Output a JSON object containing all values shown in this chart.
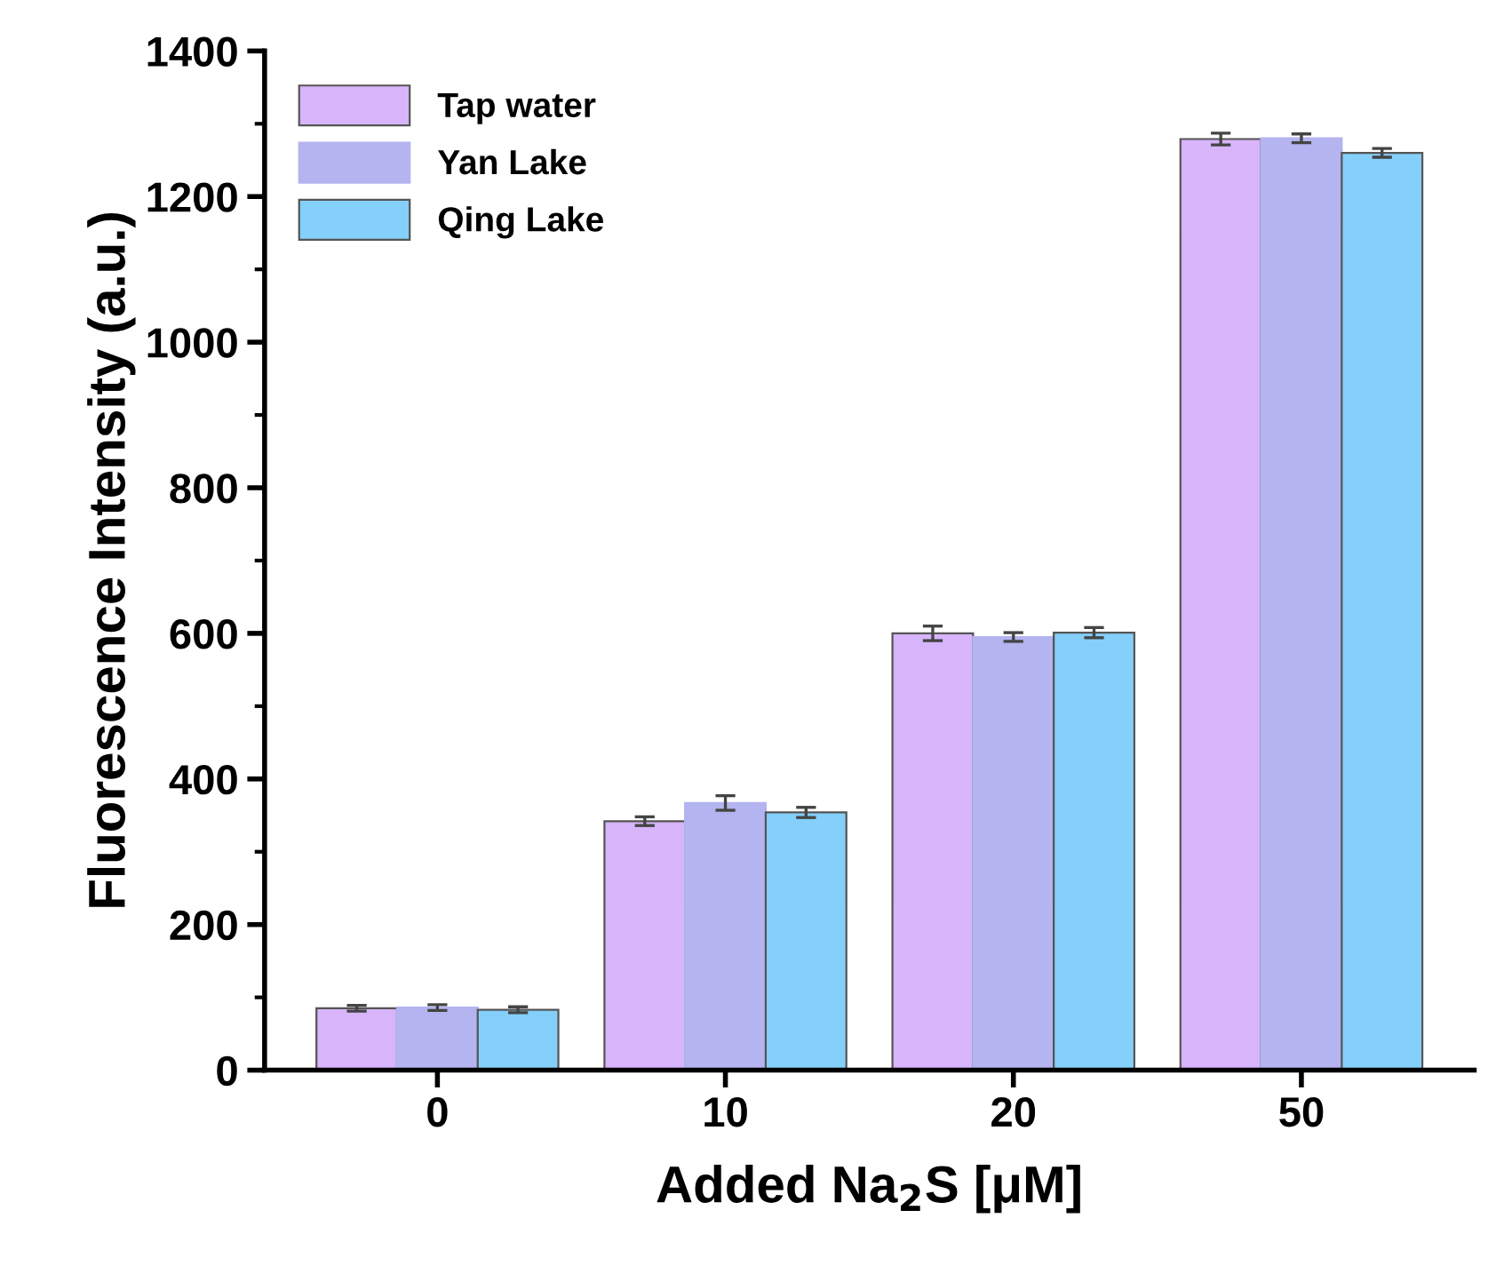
{
  "chart_data": {
    "type": "bar",
    "xlabel": "Added Na$_{2}$S [μM]",
    "ylabel": "Fluorescence Intensity (a.u.)",
    "categories": [
      "0",
      "10",
      "20",
      "50"
    ],
    "series": [
      {
        "name": "Tap water",
        "color": "#d8b4fb",
        "values": [
          85,
          342,
          600,
          1279
        ],
        "errors": [
          4,
          6,
          10,
          8
        ]
      },
      {
        "name": "Yan Lake",
        "color": "#b4b4f0",
        "values": [
          86,
          367,
          595,
          1280
        ],
        "errors": [
          4,
          10,
          6,
          6
        ]
      },
      {
        "name": "Qing Lake",
        "color": "#84d0fb",
        "values": [
          83,
          354,
          601,
          1260
        ],
        "errors": [
          4,
          7,
          7,
          6
        ]
      }
    ],
    "ylim": [
      0,
      1400
    ],
    "yticks": [
      0,
      200,
      400,
      600,
      800,
      1000,
      1200,
      1400
    ],
    "legend": "top left",
    "grid": false
  }
}
